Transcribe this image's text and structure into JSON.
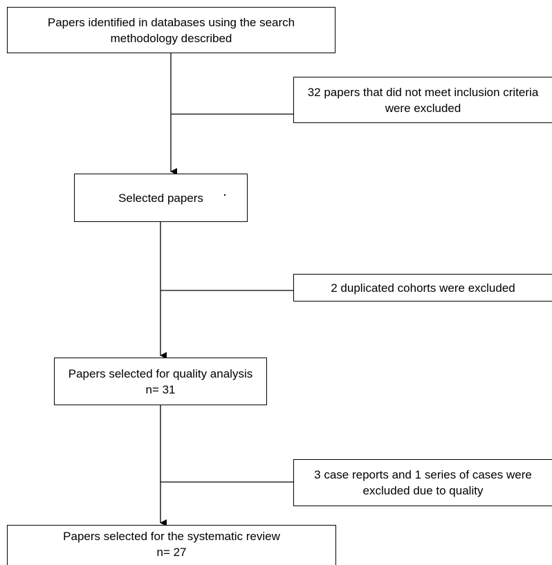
{
  "boxes": {
    "identified": {
      "line1": "Papers identified in databases using the search",
      "line2": "methodology described"
    },
    "excluded_criteria": {
      "line1": "32 papers that did not meet inclusion criteria",
      "line2": "were excluded"
    },
    "selected": {
      "line1": "Selected papers"
    },
    "excluded_duplicates": {
      "line1": "2 duplicated cohorts were excluded"
    },
    "quality": {
      "line1": "Papers selected for quality analysis",
      "line2": "n= 31"
    },
    "excluded_quality": {
      "line1": "3 case reports and 1 series of cases were",
      "line2": "excluded due to quality"
    },
    "review": {
      "line1": "Papers selected for the systematic review",
      "line2": "n= 27"
    }
  }
}
